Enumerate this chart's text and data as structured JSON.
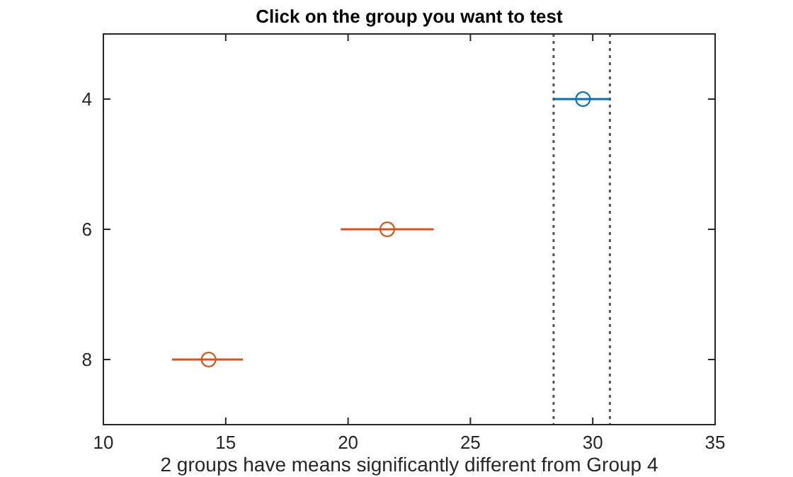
{
  "chart_data": {
    "type": "scatter",
    "title": "Click on the group you want to test",
    "xlabel": "2 groups have means significantly different from Group 4",
    "xlim": [
      10,
      35
    ],
    "xticks": [
      10,
      15,
      20,
      25,
      30,
      35
    ],
    "ylim": [
      9,
      3
    ],
    "yticks": [
      4,
      6,
      8
    ],
    "marker": "circle",
    "grid": false,
    "series": [
      {
        "color": "#0072bd",
        "x": [
          29.6
        ],
        "values": [
          4
        ],
        "xerrors": [
          [
            28.4,
            30.7
          ]
        ]
      },
      {
        "color": "#d95319",
        "x": [
          21.6,
          14.3
        ],
        "values": [
          6,
          8
        ],
        "xerrors": [
          [
            19.7,
            23.5
          ],
          [
            12.8,
            15.7
          ]
        ]
      }
    ],
    "ref_lines": [
      {
        "axis": "x",
        "value": 28.4,
        "color": "#555555",
        "line_style": "dotted"
      },
      {
        "axis": "x",
        "value": 30.7,
        "color": "#555555",
        "line_style": "dotted"
      }
    ]
  }
}
